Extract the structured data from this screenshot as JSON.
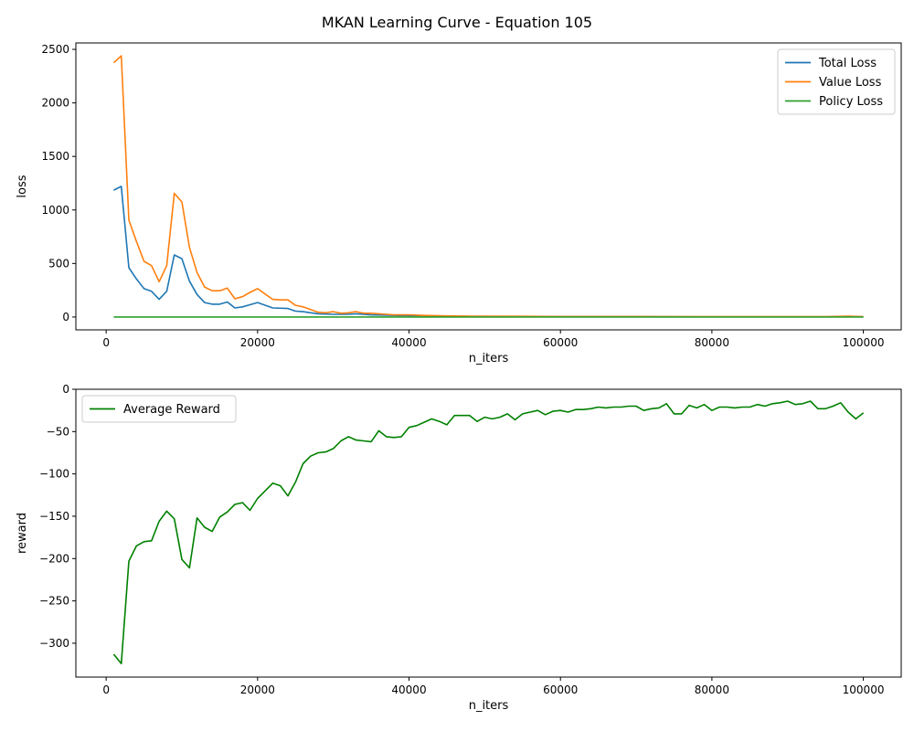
{
  "figure": {
    "title": "MKAN Learning Curve - Equation 105"
  },
  "chart_data": [
    {
      "type": "line",
      "xlabel": "n_iters",
      "ylabel": "loss",
      "xlim": [
        -4000,
        105000
      ],
      "ylim": [
        -120,
        2560
      ],
      "xticks": [
        0,
        20000,
        40000,
        60000,
        80000,
        100000
      ],
      "xtick_labels": [
        "0",
        "20000",
        "40000",
        "60000",
        "80000",
        "100000"
      ],
      "yticks": [
        0,
        500,
        1000,
        1500,
        2000,
        2500
      ],
      "ytick_labels": [
        "0",
        "500",
        "1000",
        "1500",
        "2000",
        "2500"
      ],
      "grid": false,
      "legend_position": "top-right",
      "series": [
        {
          "name": "Total Loss",
          "color": "#1f77b4",
          "x": [
            1000,
            2000,
            3000,
            4000,
            5000,
            6000,
            7000,
            8000,
            9000,
            10000,
            11000,
            12000,
            13000,
            14000,
            15000,
            16000,
            17000,
            18000,
            19000,
            20000,
            22000,
            24000,
            25000,
            26000,
            27000,
            28000,
            30000,
            32000,
            33000,
            35000,
            40000,
            45000,
            50000,
            55000,
            60000,
            70000,
            80000,
            90000,
            100000
          ],
          "y": [
            1185,
            1220,
            460,
            355,
            265,
            240,
            165,
            240,
            580,
            545,
            335,
            210,
            135,
            120,
            120,
            140,
            85,
            95,
            115,
            135,
            85,
            80,
            55,
            50,
            40,
            30,
            25,
            25,
            30,
            20,
            12,
            8,
            5,
            4,
            3,
            3,
            2,
            2,
            2
          ]
        },
        {
          "name": "Value Loss",
          "color": "#ff7f0e",
          "x": [
            1000,
            2000,
            3000,
            4000,
            5000,
            6000,
            7000,
            8000,
            9000,
            10000,
            11000,
            12000,
            13000,
            14000,
            15000,
            16000,
            17000,
            18000,
            19000,
            20000,
            21000,
            22000,
            23000,
            24000,
            25000,
            26000,
            27000,
            28000,
            29000,
            30000,
            31000,
            32000,
            33000,
            34000,
            35000,
            36000,
            37000,
            38000,
            40000,
            42000,
            44000,
            46000,
            48000,
            50000,
            55000,
            60000,
            65000,
            70000,
            75000,
            80000,
            85000,
            90000,
            95000,
            98000,
            100000
          ],
          "y": [
            2375,
            2440,
            905,
            705,
            520,
            480,
            330,
            480,
            1155,
            1075,
            650,
            415,
            280,
            245,
            245,
            270,
            170,
            190,
            230,
            265,
            215,
            165,
            160,
            160,
            110,
            95,
            70,
            45,
            40,
            50,
            35,
            40,
            50,
            35,
            35,
            30,
            25,
            20,
            20,
            15,
            12,
            10,
            8,
            8,
            6,
            5,
            5,
            5,
            4,
            4,
            4,
            4,
            4,
            8,
            4
          ]
        },
        {
          "name": "Policy Loss",
          "color": "#2ca02c",
          "x": [
            1000,
            100000
          ],
          "y": [
            0,
            0
          ]
        }
      ]
    },
    {
      "type": "line",
      "xlabel": "n_iters",
      "ylabel": "reward",
      "xlim": [
        -4000,
        105000
      ],
      "ylim": [
        -340,
        0
      ],
      "xticks": [
        0,
        20000,
        40000,
        60000,
        80000,
        100000
      ],
      "xtick_labels": [
        "0",
        "20000",
        "40000",
        "60000",
        "80000",
        "100000"
      ],
      "yticks": [
        0,
        -50,
        -100,
        -150,
        -200,
        -250,
        -300
      ],
      "ytick_labels": [
        "0",
        "−50",
        "−100",
        "−150",
        "−200",
        "−250",
        "−300"
      ],
      "grid": false,
      "legend_position": "top-left",
      "series": [
        {
          "name": "Average Reward",
          "color": "#008000",
          "x": [
            1000,
            2000,
            3000,
            4000,
            5000,
            6000,
            7000,
            8000,
            9000,
            10000,
            11000,
            12000,
            13000,
            14000,
            15000,
            16000,
            17000,
            18000,
            19000,
            20000,
            21000,
            22000,
            23000,
            24000,
            25000,
            26000,
            27000,
            28000,
            29000,
            30000,
            31000,
            32000,
            33000,
            34000,
            35000,
            36000,
            37000,
            38000,
            39000,
            40000,
            41000,
            42000,
            43000,
            44000,
            45000,
            46000,
            47000,
            48000,
            49000,
            50000,
            51000,
            52000,
            53000,
            54000,
            55000,
            56000,
            57000,
            58000,
            59000,
            60000,
            61000,
            62000,
            63000,
            64000,
            65000,
            66000,
            67000,
            68000,
            69000,
            70000,
            71000,
            72000,
            73000,
            74000,
            75000,
            76000,
            77000,
            78000,
            79000,
            80000,
            81000,
            82000,
            83000,
            84000,
            85000,
            86000,
            87000,
            88000,
            89000,
            90000,
            91000,
            92000,
            93000,
            94000,
            95000,
            96000,
            97000,
            98000,
            99000,
            100000
          ],
          "y": [
            -313,
            -324,
            -203,
            -185,
            -180,
            -179,
            -156,
            -144,
            -153,
            -201,
            -211,
            -152,
            -163,
            -168,
            -151,
            -145,
            -136,
            -134,
            -143,
            -129,
            -120,
            -111,
            -114,
            -126,
            -110,
            -88,
            -79,
            -75,
            -74,
            -70,
            -61,
            -56,
            -60,
            -61,
            -62,
            -49,
            -56,
            -57,
            -56,
            -45,
            -43,
            -39,
            -35,
            -38,
            -42,
            -31,
            -31,
            -31,
            -38,
            -33,
            -35,
            -33,
            -29,
            -36,
            -29,
            -27,
            -25,
            -30,
            -26,
            -25,
            -27,
            -24,
            -24,
            -23,
            -21,
            -22,
            -21,
            -21,
            -20,
            -20,
            -25,
            -23,
            -22,
            -17,
            -29,
            -29,
            -19,
            -22,
            -18,
            -25,
            -21,
            -21,
            -22,
            -21,
            -21,
            -18,
            -20,
            -17,
            -16,
            -14,
            -18,
            -17,
            -14,
            -23,
            -23,
            -20,
            -16,
            -27,
            -35,
            -28
          ]
        }
      ]
    }
  ]
}
